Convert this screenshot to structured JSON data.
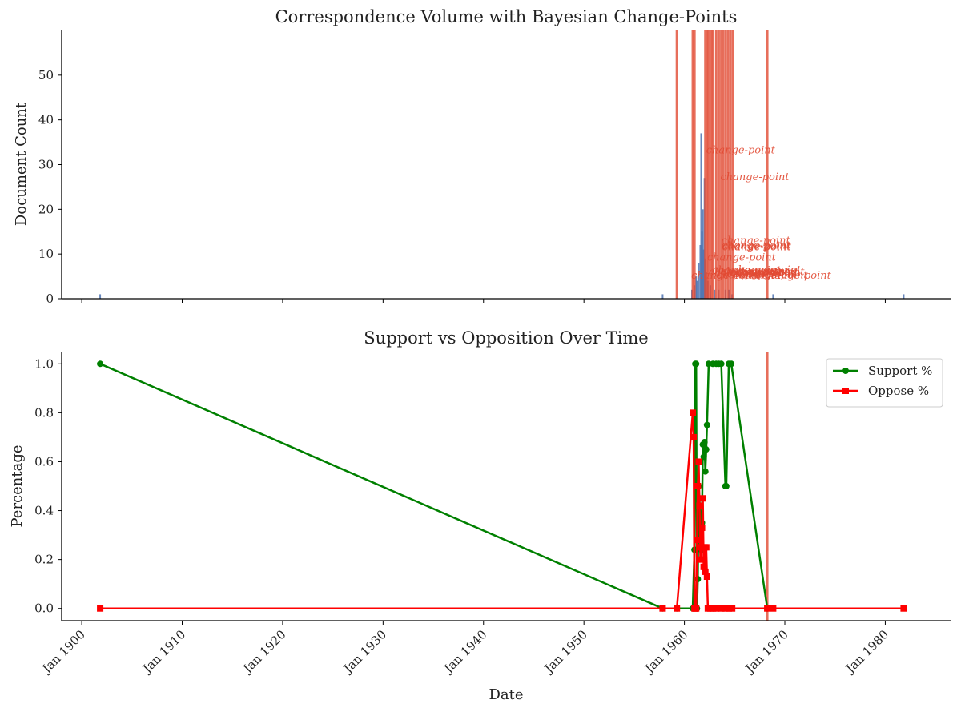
{
  "chart_data": [
    {
      "type": "bar",
      "title": "Correspondence Volume with Bayesian Change-Points",
      "xlabel": "",
      "ylabel": "Document Count",
      "xlim": [
        "1898-01",
        "1986-08"
      ],
      "ylim": [
        0,
        60
      ],
      "y_ticks": [
        0,
        10,
        20,
        30,
        40,
        50
      ],
      "x_ticks": [
        "1900-01",
        "1910-01",
        "1920-01",
        "1930-01",
        "1940-01",
        "1950-01",
        "1960-01",
        "1970-01",
        "1980-01"
      ],
      "x_tick_labels": [
        "Jan 1900",
        "Jan 1910",
        "Jan 1920",
        "Jan 1930",
        "Jan 1940",
        "Jan 1950",
        "Jan 1960",
        "Jan 1970",
        "Jan 1980"
      ],
      "bar_color": "#4c72b0",
      "bars": [
        {
          "x": "1901-11",
          "y": 1
        },
        {
          "x": "1957-11",
          "y": 1
        },
        {
          "x": "1960-10",
          "y": 2
        },
        {
          "x": "1961-01",
          "y": 3
        },
        {
          "x": "1961-03",
          "y": 5
        },
        {
          "x": "1961-04",
          "y": 4
        },
        {
          "x": "1961-06",
          "y": 8
        },
        {
          "x": "1961-08",
          "y": 12
        },
        {
          "x": "1961-09",
          "y": 37
        },
        {
          "x": "1961-10",
          "y": 15
        },
        {
          "x": "1961-11",
          "y": 20
        },
        {
          "x": "1961-12",
          "y": 11
        },
        {
          "x": "1962-01",
          "y": 27
        },
        {
          "x": "1962-02",
          "y": 9
        },
        {
          "x": "1962-03",
          "y": 6
        },
        {
          "x": "1962-05",
          "y": 4
        },
        {
          "x": "1962-08",
          "y": 3
        },
        {
          "x": "1963-01",
          "y": 2
        },
        {
          "x": "1963-06",
          "y": 2
        },
        {
          "x": "1964-02",
          "y": 2
        },
        {
          "x": "1964-06",
          "y": 2
        },
        {
          "x": "1964-10",
          "y": 1
        },
        {
          "x": "1968-11",
          "y": 1
        },
        {
          "x": "1981-11",
          "y": 1
        }
      ],
      "change_point_color": "#e24a33",
      "change_points": [
        "1959-04",
        "1960-11",
        "1961-01",
        "1962-02",
        "1962-04",
        "1962-06",
        "1962-09",
        "1962-11",
        "1963-03",
        "1963-06",
        "1963-09",
        "1963-11",
        "1964-02",
        "1964-05",
        "1964-08",
        "1964-11",
        "1968-04"
      ],
      "annotations": [
        {
          "text": "change-point",
          "x": "1962-03",
          "y": 32.5
        },
        {
          "text": "change-point",
          "x": "1963-08",
          "y": 26.5
        },
        {
          "text": "change-point",
          "x": "1963-09",
          "y": 12.3
        },
        {
          "text": "change-point",
          "x": "1963-09",
          "y": 11.2
        },
        {
          "text": "change-point",
          "x": "1963-10",
          "y": 11.0
        },
        {
          "text": "change-point",
          "x": "1963-10",
          "y": 10.8
        },
        {
          "text": "change-point",
          "x": "1962-04",
          "y": 8.5
        },
        {
          "text": "change-point",
          "x": "1960-09",
          "y": 4.5
        },
        {
          "text": "change-point",
          "x": "1962-06",
          "y": 5.3
        },
        {
          "text": "change-point",
          "x": "1962-10",
          "y": 5.6
        },
        {
          "text": "change-point",
          "x": "1963-01",
          "y": 5.0
        },
        {
          "text": "change-point",
          "x": "1963-03",
          "y": 4.6
        },
        {
          "text": "change-point",
          "x": "1963-08",
          "y": 5.4
        },
        {
          "text": "change-point",
          "x": "1964-03",
          "y": 4.8
        },
        {
          "text": "change-point",
          "x": "1964-07",
          "y": 5.2
        },
        {
          "text": "change-point",
          "x": "1964-10",
          "y": 5.7
        },
        {
          "text": "change-point",
          "x": "1965-02",
          "y": 5.3
        },
        {
          "text": "change-point",
          "x": "1965-06",
          "y": 4.6
        },
        {
          "text": "change-point",
          "x": "1967-10",
          "y": 4.5
        }
      ]
    },
    {
      "type": "line",
      "title": "Support vs Opposition Over Time",
      "xlabel": "Date",
      "ylabel": "Percentage",
      "xlim": [
        "1898-01",
        "1986-08"
      ],
      "ylim": [
        -0.05,
        1.05
      ],
      "y_ticks": [
        0.0,
        0.2,
        0.4,
        0.6,
        0.8,
        1.0
      ],
      "y_tick_labels": [
        "0.0",
        "0.2",
        "0.4",
        "0.6",
        "0.8",
        "1.0"
      ],
      "x_ticks": [
        "1900-01",
        "1910-01",
        "1920-01",
        "1930-01",
        "1940-01",
        "1950-01",
        "1960-01",
        "1970-01",
        "1980-01"
      ],
      "x_tick_labels": [
        "Jan 1900",
        "Jan 1910",
        "Jan 1920",
        "Jan 1930",
        "Jan 1940",
        "Jan 1950",
        "Jan 1960",
        "Jan 1970",
        "Jan 1980"
      ],
      "legend_position": "top-right",
      "change_points": [
        "1968-04"
      ],
      "series": [
        {
          "name": "Support %",
          "color": "#008000",
          "marker": "circle",
          "points": [
            [
              "1901-11",
              1.0
            ],
            [
              "1957-11",
              0.0
            ],
            [
              "1959-04",
              0.0
            ],
            [
              "1960-11",
              0.0
            ],
            [
              "1961-01",
              0.24
            ],
            [
              "1961-02",
              1.0
            ],
            [
              "1961-03",
              1.0
            ],
            [
              "1961-04",
              0.0
            ],
            [
              "1961-05",
              0.12
            ],
            [
              "1961-06",
              0.5
            ],
            [
              "1961-08",
              0.38
            ],
            [
              "1961-09",
              0.24
            ],
            [
              "1961-10",
              0.35
            ],
            [
              "1961-11",
              0.67
            ],
            [
              "1961-12",
              0.62
            ],
            [
              "1962-01",
              0.68
            ],
            [
              "1962-02",
              0.56
            ],
            [
              "1962-03",
              0.65
            ],
            [
              "1962-04",
              0.75
            ],
            [
              "1962-06",
              1.0
            ],
            [
              "1962-11",
              1.0
            ],
            [
              "1963-03",
              1.0
            ],
            [
              "1963-06",
              1.0
            ],
            [
              "1963-09",
              1.0
            ],
            [
              "1964-02",
              0.5
            ],
            [
              "1964-03",
              0.5
            ],
            [
              "1964-06",
              1.0
            ],
            [
              "1964-09",
              1.0
            ],
            [
              "1968-04",
              0.0
            ]
          ]
        },
        {
          "name": "Oppose %",
          "color": "#ff0000",
          "marker": "square",
          "points": [
            [
              "1901-11",
              0.0
            ],
            [
              "1957-11",
              0.0
            ],
            [
              "1959-04",
              0.0
            ],
            [
              "1960-11",
              0.8
            ],
            [
              "1960-12",
              0.7
            ],
            [
              "1961-01",
              0.0
            ],
            [
              "1961-02",
              0.0
            ],
            [
              "1961-03",
              0.0
            ],
            [
              "1961-04",
              0.28
            ],
            [
              "1961-05",
              0.5
            ],
            [
              "1961-06",
              0.6
            ],
            [
              "1961-07",
              0.42
            ],
            [
              "1961-08",
              0.2
            ],
            [
              "1961-09",
              0.25
            ],
            [
              "1961-10",
              0.33
            ],
            [
              "1961-11",
              0.45
            ],
            [
              "1961-12",
              0.17
            ],
            [
              "1962-01",
              0.25
            ],
            [
              "1962-02",
              0.15
            ],
            [
              "1962-03",
              0.25
            ],
            [
              "1962-04",
              0.13
            ],
            [
              "1962-05",
              0.0
            ],
            [
              "1962-08",
              0.0
            ],
            [
              "1962-11",
              0.0
            ],
            [
              "1963-03",
              0.0
            ],
            [
              "1963-09",
              0.0
            ],
            [
              "1964-02",
              0.0
            ],
            [
              "1964-06",
              0.0
            ],
            [
              "1964-10",
              0.0
            ],
            [
              "1968-04",
              0.0
            ],
            [
              "1968-11",
              0.0
            ],
            [
              "1981-11",
              0.0
            ]
          ]
        }
      ]
    }
  ]
}
